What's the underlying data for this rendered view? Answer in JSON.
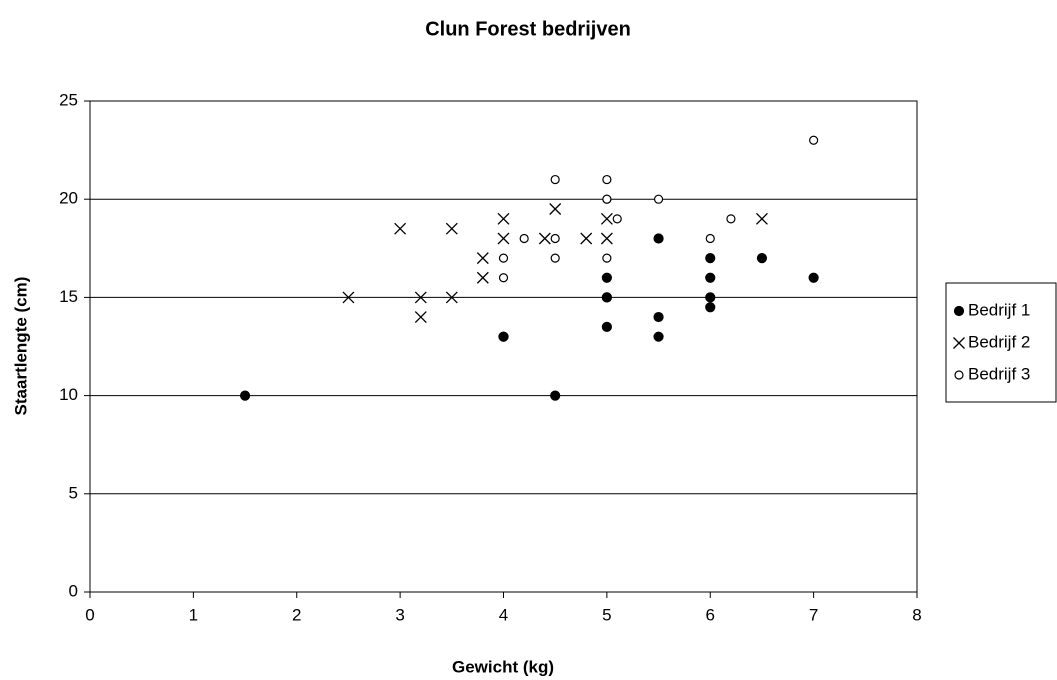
{
  "chart_data": {
    "type": "scatter",
    "title": "Clun Forest bedrijven",
    "xlabel": "Gewicht (kg)",
    "ylabel": "Staartlengte (cm)",
    "xlim": [
      0,
      8
    ],
    "xticks": [
      0,
      1,
      2,
      3,
      4,
      5,
      6,
      7,
      8
    ],
    "ylim": [
      0,
      25
    ],
    "yticks": [
      0,
      5,
      10,
      15,
      20,
      25
    ],
    "grid": true,
    "legend": "right",
    "series": [
      {
        "name": "Bedrijf 1",
        "color": "#000000",
        "marker": "filled-circle",
        "x": [
          1.5,
          4,
          4,
          4.5,
          5,
          5,
          5,
          5,
          5.5,
          5.5,
          5.5,
          6,
          6,
          6,
          6,
          6.5,
          7
        ],
        "values": [
          10,
          13,
          13,
          10,
          16,
          15,
          15,
          13.5,
          18,
          14,
          13,
          17,
          16,
          15,
          14.5,
          17,
          16
        ]
      },
      {
        "name": "Bedrijf 2",
        "color": "#000000",
        "marker": "cross",
        "x": [
          2.5,
          3,
          3.2,
          3.2,
          3.5,
          3.5,
          3.8,
          3.8,
          4,
          4,
          4.4,
          4.5,
          4.8,
          5,
          5,
          6.5
        ],
        "values": [
          15,
          18.5,
          15,
          14,
          18.5,
          15,
          17,
          16,
          19,
          18,
          18,
          19.5,
          18,
          19,
          18,
          19
        ]
      },
      {
        "name": "Bedrijf 3",
        "color": "#000000",
        "marker": "open-circle",
        "x": [
          4,
          4,
          4.2,
          4.5,
          4.5,
          4.5,
          5,
          5,
          5,
          5,
          5.1,
          5.5,
          6,
          6.2,
          7
        ],
        "values": [
          17,
          16,
          18,
          21,
          18,
          17,
          21,
          20,
          20,
          17,
          19,
          20,
          18,
          19,
          23
        ]
      }
    ]
  }
}
